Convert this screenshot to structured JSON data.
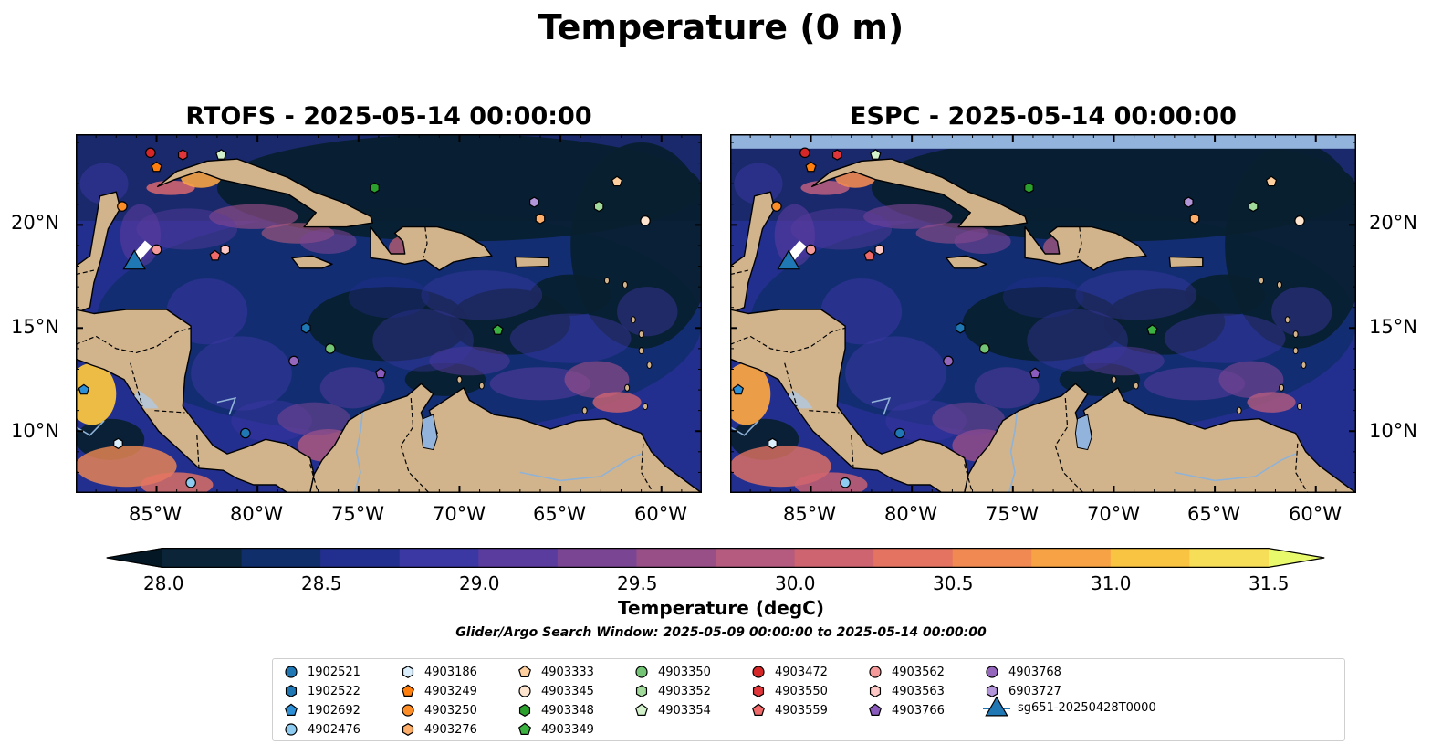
{
  "figure": {
    "title": "Temperature (0 m)",
    "panels": [
      {
        "title": "RTOFS - 2025-05-14 00:00:00",
        "model": "RTOFS"
      },
      {
        "title": "ESPC - 2025-05-14 00:00:00",
        "model": "ESPC"
      }
    ],
    "lat_ticks": [
      "10°N",
      "15°N",
      "20°N"
    ],
    "lon_ticks": [
      "85°W",
      "80°W",
      "75°W",
      "70°W",
      "65°W",
      "60°W"
    ],
    "extent": {
      "lon": [
        -89,
        -58
      ],
      "lat": [
        7,
        24.4
      ]
    },
    "colors": {
      "land": "#d2b48c",
      "ocean_cold": "#08202f",
      "lake": "#92b3dc"
    }
  },
  "colorbar": {
    "label": "Temperature (degC)",
    "ticks": [
      "28.0",
      "28.5",
      "29.0",
      "29.5",
      "30.0",
      "30.5",
      "31.0",
      "31.5"
    ],
    "range": [
      27.75,
      31.5
    ],
    "colors": [
      "#0b2437",
      "#0f2e6a",
      "#232f8e",
      "#3b37a3",
      "#5a3c9e",
      "#7a4592",
      "#984f88",
      "#b45b7f",
      "#cf6471",
      "#e47361",
      "#f18a52",
      "#f7a345",
      "#f9c441",
      "#f6de58"
    ],
    "extend_low": "#031824",
    "extend_high": "#e8fa6b"
  },
  "search_window": "Glider/Argo Search Window: 2025-05-09 00:00:00 to 2025-05-14 00:00:00",
  "legend": [
    {
      "id": "1902521",
      "marker": "circle",
      "color": "#1f77b4"
    },
    {
      "id": "1902522",
      "marker": "hexagon",
      "color": "#1f77b4"
    },
    {
      "id": "1902692",
      "marker": "pentagon",
      "color": "#2d8fd5"
    },
    {
      "id": "4902476",
      "marker": "circle",
      "color": "#8ecbf0"
    },
    {
      "id": "4903186",
      "marker": "hexagon",
      "color": "#dbeefc"
    },
    {
      "id": "4903249",
      "marker": "pentagon",
      "color": "#ff7f0e"
    },
    {
      "id": "4903250",
      "marker": "circle",
      "color": "#fd8d27"
    },
    {
      "id": "4903276",
      "marker": "hexagon",
      "color": "#fdae6b"
    },
    {
      "id": "4903333",
      "marker": "pentagon",
      "color": "#fdcf9e"
    },
    {
      "id": "4903345",
      "marker": "circle",
      "color": "#fde5cf"
    },
    {
      "id": "4903348",
      "marker": "hexagon",
      "color": "#2ca02c"
    },
    {
      "id": "4903349",
      "marker": "pentagon",
      "color": "#3cb341"
    },
    {
      "id": "4903350",
      "marker": "circle",
      "color": "#74c476"
    },
    {
      "id": "4903352",
      "marker": "hexagon",
      "color": "#a1d99b"
    },
    {
      "id": "4903354",
      "marker": "pentagon",
      "color": "#d3f2cc"
    },
    {
      "id": "4903472",
      "marker": "circle",
      "color": "#d62728"
    },
    {
      "id": "4903550",
      "marker": "hexagon",
      "color": "#e0353a"
    },
    {
      "id": "4903559",
      "marker": "pentagon",
      "color": "#f06a6a"
    },
    {
      "id": "4903562",
      "marker": "circle",
      "color": "#f59a9a"
    },
    {
      "id": "4903563",
      "marker": "hexagon",
      "color": "#fcc7c4"
    },
    {
      "id": "4903766",
      "marker": "pentagon",
      "color": "#8a5bbd"
    },
    {
      "id": "4903768",
      "marker": "circle",
      "color": "#9467bd"
    },
    {
      "id": "6903727",
      "marker": "hexagon",
      "color": "#b395da"
    },
    {
      "id": "sg651-20250428T0000",
      "marker": "triangle",
      "color": "#1f77b4"
    }
  ],
  "floats": [
    {
      "id": "1902521",
      "lon": -80.6,
      "lat": 9.9
    },
    {
      "id": "1902522",
      "lon": -77.6,
      "lat": 15.0
    },
    {
      "id": "1902692",
      "lon": -88.6,
      "lat": 12.0
    },
    {
      "id": "4902476",
      "lon": -83.3,
      "lat": 7.5
    },
    {
      "id": "4903186",
      "lon": -86.9,
      "lat": 9.4
    },
    {
      "id": "4903249",
      "lon": -85.0,
      "lat": 22.8
    },
    {
      "id": "4903250",
      "lon": -86.7,
      "lat": 20.9
    },
    {
      "id": "4903276",
      "lon": -66.0,
      "lat": 20.3
    },
    {
      "id": "4903333",
      "lon": -62.2,
      "lat": 22.1
    },
    {
      "id": "4903345",
      "lon": -60.8,
      "lat": 20.2
    },
    {
      "id": "4903348",
      "lon": -74.2,
      "lat": 21.8
    },
    {
      "id": "4903349",
      "lon": -68.1,
      "lat": 14.9
    },
    {
      "id": "4903350",
      "lon": -76.4,
      "lat": 14.0
    },
    {
      "id": "4903352",
      "lon": -63.1,
      "lat": 20.9
    },
    {
      "id": "4903354",
      "lon": -81.8,
      "lat": 23.4
    },
    {
      "id": "4903472",
      "lon": -85.3,
      "lat": 23.5
    },
    {
      "id": "4903550",
      "lon": -83.7,
      "lat": 23.4
    },
    {
      "id": "4903559",
      "lon": -82.1,
      "lat": 18.5
    },
    {
      "id": "4903562",
      "lon": -85.0,
      "lat": 18.8
    },
    {
      "id": "4903563",
      "lon": -81.6,
      "lat": 18.8
    },
    {
      "id": "4903766",
      "lon": -73.9,
      "lat": 12.8
    },
    {
      "id": "4903768",
      "lon": -78.2,
      "lat": 13.4
    },
    {
      "id": "6903727",
      "lon": -66.3,
      "lat": 21.1
    }
  ],
  "glider": {
    "id": "sg651-20250428T0000",
    "lon": -86.1,
    "lat": 18.3
  }
}
